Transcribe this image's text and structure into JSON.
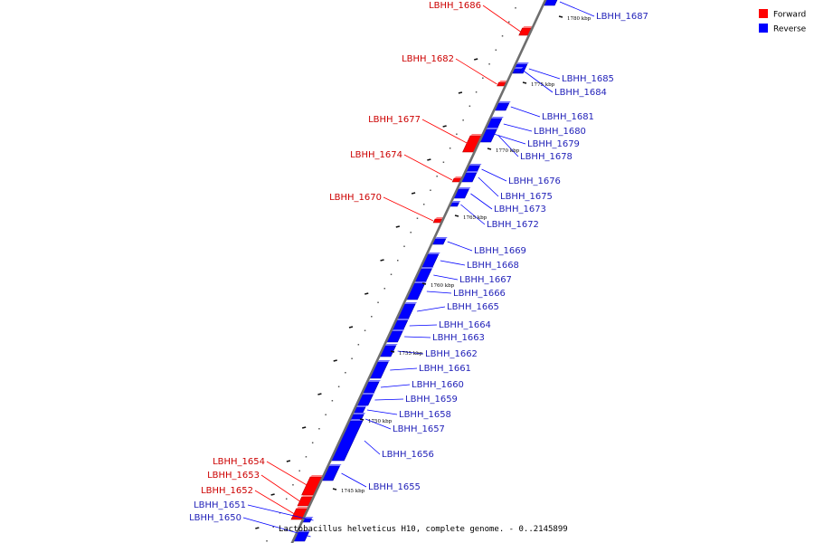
{
  "colors": {
    "forward": "#ff0000",
    "reverse": "#0000ff",
    "forward_label": "#cc0000",
    "reverse_label": "#1f1fb8",
    "backbone": "#777777"
  },
  "legend": {
    "forward_label": "Forward",
    "reverse_label": "Reverse"
  },
  "caption": "Lactobacillus helveticus H10, complete genome. - 0..2145899",
  "kbp_ticks": [
    "1745 kbp",
    "1750 kbp",
    "1755 kbp",
    "1760 kbp",
    "1765 kbp",
    "1770 kbp",
    "1775 kbp",
    "1780 kbp"
  ],
  "genes": [
    {
      "id": "LBHH_1687",
      "strand": "reverse"
    },
    {
      "id": "LBHH_1686",
      "strand": "forward"
    },
    {
      "id": "LBHH_1685",
      "strand": "reverse"
    },
    {
      "id": "LBHH_1684",
      "strand": "reverse"
    },
    {
      "id": "LBHH_1682",
      "strand": "forward"
    },
    {
      "id": "LBHH_1681",
      "strand": "reverse"
    },
    {
      "id": "LBHH_1680",
      "strand": "reverse"
    },
    {
      "id": "LBHH_1679",
      "strand": "reverse"
    },
    {
      "id": "LBHH_1678",
      "strand": "reverse"
    },
    {
      "id": "LBHH_1677",
      "strand": "forward"
    },
    {
      "id": "LBHH_1676",
      "strand": "reverse"
    },
    {
      "id": "LBHH_1675",
      "strand": "reverse"
    },
    {
      "id": "LBHH_1674",
      "strand": "forward"
    },
    {
      "id": "LBHH_1673",
      "strand": "reverse"
    },
    {
      "id": "LBHH_1672",
      "strand": "reverse"
    },
    {
      "id": "LBHH_1670",
      "strand": "forward"
    },
    {
      "id": "LBHH_1669",
      "strand": "reverse"
    },
    {
      "id": "LBHH_1668",
      "strand": "reverse"
    },
    {
      "id": "LBHH_1667",
      "strand": "reverse"
    },
    {
      "id": "LBHH_1666",
      "strand": "reverse"
    },
    {
      "id": "LBHH_1665",
      "strand": "reverse"
    },
    {
      "id": "LBHH_1664",
      "strand": "reverse"
    },
    {
      "id": "LBHH_1663",
      "strand": "reverse"
    },
    {
      "id": "LBHH_1662",
      "strand": "reverse"
    },
    {
      "id": "LBHH_1661",
      "strand": "reverse"
    },
    {
      "id": "LBHH_1660",
      "strand": "reverse"
    },
    {
      "id": "LBHH_1659",
      "strand": "reverse"
    },
    {
      "id": "LBHH_1658",
      "strand": "reverse"
    },
    {
      "id": "LBHH_1657",
      "strand": "reverse"
    },
    {
      "id": "LBHH_1656",
      "strand": "reverse"
    },
    {
      "id": "LBHH_1655",
      "strand": "reverse"
    },
    {
      "id": "LBHH_1654",
      "strand": "forward"
    },
    {
      "id": "LBHH_1653",
      "strand": "forward"
    },
    {
      "id": "LBHH_1652",
      "strand": "forward"
    },
    {
      "id": "LBHH_1651",
      "strand": "reverse"
    },
    {
      "id": "LBHH_1650",
      "strand": "reverse"
    }
  ]
}
